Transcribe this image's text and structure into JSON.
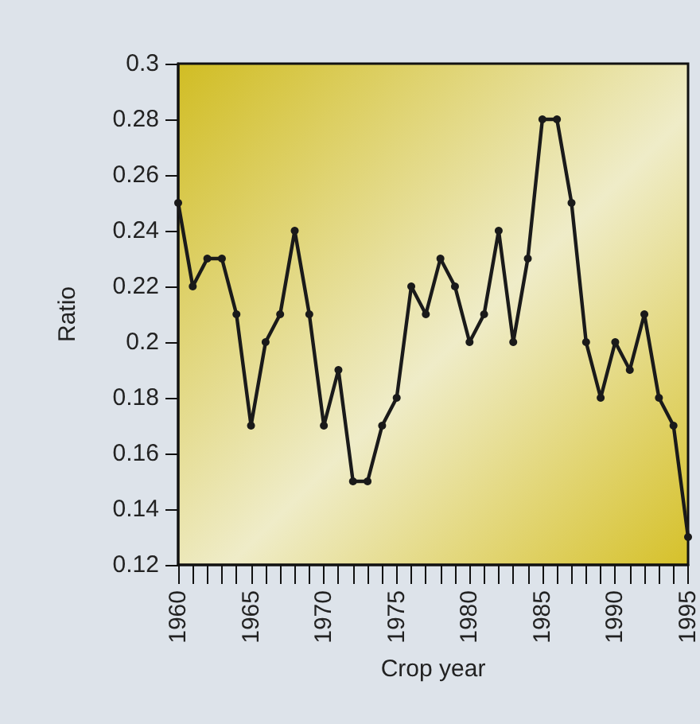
{
  "chart_data": {
    "type": "line",
    "xlabel": "Crop year",
    "ylabel": "Ratio",
    "x": [
      1960,
      1961,
      1962,
      1963,
      1964,
      1965,
      1966,
      1967,
      1968,
      1969,
      1970,
      1971,
      1972,
      1973,
      1974,
      1975,
      1976,
      1977,
      1978,
      1979,
      1980,
      1981,
      1982,
      1983,
      1984,
      1985,
      1986,
      1987,
      1988,
      1989,
      1990,
      1991,
      1992,
      1993,
      1994,
      1995
    ],
    "series": [
      {
        "color": "#1a1a1a",
        "values": [
          0.25,
          0.22,
          0.23,
          0.23,
          0.21,
          0.17,
          0.2,
          0.21,
          0.24,
          0.21,
          0.17,
          0.19,
          0.15,
          0.15,
          0.17,
          0.18,
          0.22,
          0.21,
          0.23,
          0.22,
          0.2,
          0.21,
          0.24,
          0.2,
          0.23,
          0.28,
          0.28,
          0.25,
          0.2,
          0.18,
          0.2,
          0.19,
          0.21,
          0.18,
          0.17,
          0.13
        ]
      }
    ],
    "xlim": [
      1960,
      1995
    ],
    "xticks": [
      1960,
      {
        "value": 1961,
        "label": null
      },
      {
        "value": 1962,
        "label": null
      },
      {
        "value": 1963,
        "label": null
      },
      {
        "value": 1964,
        "label": null
      },
      1965,
      {
        "value": 1966,
        "label": null
      },
      {
        "value": 1967,
        "label": null
      },
      {
        "value": 1968,
        "label": null
      },
      {
        "value": 1969,
        "label": null
      },
      1970,
      {
        "value": 1971,
        "label": null
      },
      {
        "value": 1972,
        "label": null
      },
      {
        "value": 1973,
        "label": null
      },
      {
        "value": 1974,
        "label": null
      },
      1975,
      {
        "value": 1976,
        "label": null
      },
      {
        "value": 1977,
        "label": null
      },
      {
        "value": 1978,
        "label": null
      },
      {
        "value": 1979,
        "label": null
      },
      1980,
      {
        "value": 1981,
        "label": null
      },
      {
        "value": 1982,
        "label": null
      },
      {
        "value": 1983,
        "label": null
      },
      {
        "value": 1984,
        "label": null
      },
      1985,
      {
        "value": 1986,
        "label": null
      },
      {
        "value": 1987,
        "label": null
      },
      {
        "value": 1988,
        "label": null
      },
      {
        "value": 1989,
        "label": null
      },
      1990,
      {
        "value": 1991,
        "label": null
      },
      {
        "value": 1992,
        "label": null
      },
      {
        "value": 1993,
        "label": null
      },
      {
        "value": 1994,
        "label": null
      },
      1995
    ],
    "ylim": [
      0.12,
      0.3
    ],
    "yticks": [
      0.12,
      0.14,
      0.16,
      0.18,
      0.2,
      0.22,
      0.24,
      0.26,
      0.28,
      0.3
    ],
    "grid": false,
    "marker": "circle",
    "line_style": "solid"
  }
}
